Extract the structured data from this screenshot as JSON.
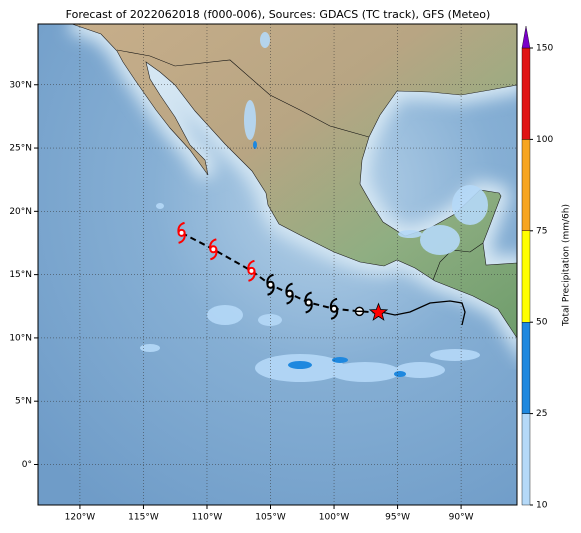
{
  "map": {
    "title": "Forecast of 2022062018 (f000-006), Sources: GDACS (TC track), GFS (Meteo)",
    "xlim": [
      -123.3,
      -85.6
    ],
    "ylim": [
      -3.2,
      34.8
    ],
    "xticks": [
      {
        "value": -120,
        "label": "120°W"
      },
      {
        "value": -115,
        "label": "115°W"
      },
      {
        "value": -110,
        "label": "110°W"
      },
      {
        "value": -105,
        "label": "105°W"
      },
      {
        "value": -100,
        "label": "100°W"
      },
      {
        "value": -95,
        "label": "95°W"
      },
      {
        "value": -90,
        "label": "90°W"
      }
    ],
    "yticks": [
      {
        "value": 0,
        "label": "0°"
      },
      {
        "value": 5,
        "label": "5°N"
      },
      {
        "value": 10,
        "label": "10°N"
      },
      {
        "value": 15,
        "label": "15°N"
      },
      {
        "value": 20,
        "label": "20°N"
      },
      {
        "value": 25,
        "label": "25°N"
      },
      {
        "value": 30,
        "label": "30°N"
      }
    ],
    "track": [
      {
        "lon": -112,
        "lat": 18.3,
        "marker": "storm",
        "color": "#ff0000"
      },
      {
        "lon": -109.5,
        "lat": 17,
        "marker": "storm",
        "color": "#ff0000"
      },
      {
        "lon": -106.5,
        "lat": 15.3,
        "marker": "storm",
        "color": "#ff0000"
      },
      {
        "lon": -105,
        "lat": 14.2,
        "marker": "storm",
        "color": "#000000"
      },
      {
        "lon": -103.5,
        "lat": 13.5,
        "marker": "storm",
        "color": "#000000"
      },
      {
        "lon": -102,
        "lat": 12.8,
        "marker": "storm",
        "color": "#000000"
      },
      {
        "lon": -100,
        "lat": 12.3,
        "marker": "storm",
        "color": "#000000"
      },
      {
        "lon": -98,
        "lat": 12.1,
        "marker": "circle",
        "color": "#000000"
      },
      {
        "lon": -96.5,
        "lat": 12,
        "marker": "star",
        "color": "#ff0000"
      }
    ],
    "colorbar": {
      "label": "Total Precipitation (mm/6h)",
      "ticks": [
        10,
        25,
        50,
        75,
        100,
        150
      ],
      "colors": [
        "#b5d9f8",
        "#1e88df",
        "#ffff00",
        "#f7a520",
        "#e01414"
      ],
      "extend_color": "#7a00c8"
    }
  }
}
